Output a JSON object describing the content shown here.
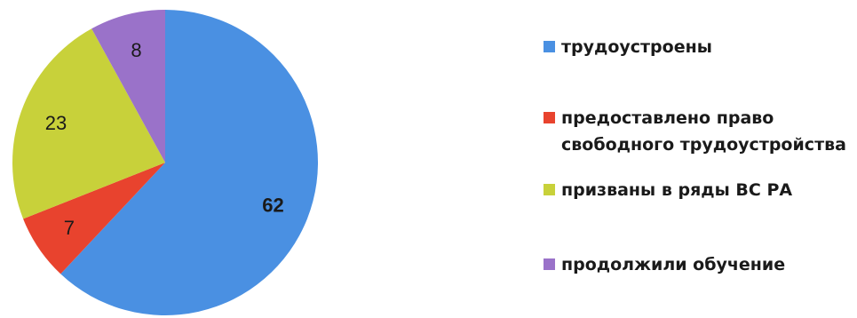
{
  "chart_data": {
    "type": "pie",
    "title": "",
    "slices": [
      {
        "name": "трудоустроены",
        "value": 62,
        "color": "#4a90e2"
      },
      {
        "name": "предоставлено право\nсвободного трудоустройства",
        "value": 7,
        "color": "#e8432e"
      },
      {
        "name": "призваны в ряды ВС РА",
        "value": 23,
        "color": "#c8d13a"
      },
      {
        "name": "продолжили обучение",
        "value": 8,
        "color": "#9a72c9"
      }
    ],
    "start_angle_deg": 0,
    "direction": "clockwise",
    "legend": {
      "placement": "right"
    },
    "data_labels": true
  }
}
